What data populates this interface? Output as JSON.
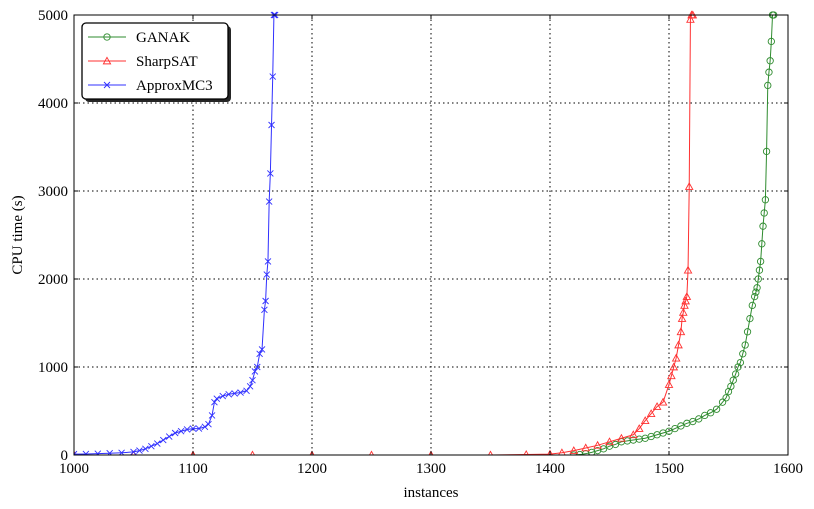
{
  "chart_data": {
    "type": "line",
    "title": "",
    "xlabel": "instances",
    "ylabel": "CPU time (s)",
    "xlim": [
      1000,
      1600
    ],
    "ylim": [
      0,
      5000
    ],
    "xticks": [
      1000,
      1100,
      1200,
      1300,
      1400,
      1500,
      1600
    ],
    "yticks": [
      0,
      1000,
      2000,
      3000,
      4000,
      5000
    ],
    "grid": true,
    "legend_position": "top-left",
    "series": [
      {
        "name": "GANAK",
        "color": "#2e8b2e",
        "marker": "circle",
        "x": [
          1420,
          1425,
          1430,
          1435,
          1440,
          1445,
          1450,
          1455,
          1460,
          1465,
          1470,
          1475,
          1480,
          1485,
          1490,
          1495,
          1500,
          1505,
          1510,
          1515,
          1520,
          1525,
          1530,
          1535,
          1540,
          1545,
          1548,
          1550,
          1552,
          1554,
          1556,
          1558,
          1560,
          1562,
          1564,
          1566,
          1568,
          1570,
          1572,
          1573,
          1574,
          1575,
          1576,
          1577,
          1578,
          1579,
          1580,
          1581,
          1582,
          1583,
          1584,
          1585,
          1586,
          1587,
          1588
        ],
        "y": [
          0,
          5,
          15,
          30,
          50,
          70,
          100,
          120,
          150,
          160,
          170,
          180,
          190,
          210,
          230,
          250,
          270,
          300,
          330,
          360,
          380,
          410,
          450,
          480,
          520,
          600,
          650,
          720,
          780,
          850,
          920,
          1000,
          1050,
          1150,
          1250,
          1400,
          1550,
          1700,
          1800,
          1850,
          1900,
          2000,
          2100,
          2200,
          2400,
          2600,
          2750,
          2900,
          3450,
          4200,
          4350,
          4480,
          4700,
          5000,
          5000
        ]
      },
      {
        "name": "SharpSAT",
        "color": "#ff3030",
        "marker": "triangle",
        "x": [
          1000,
          1050,
          1100,
          1150,
          1200,
          1250,
          1300,
          1350,
          1380,
          1400,
          1410,
          1420,
          1430,
          1440,
          1450,
          1460,
          1470,
          1475,
          1480,
          1485,
          1490,
          1495,
          1500,
          1502,
          1504,
          1506,
          1508,
          1510,
          1511,
          1512,
          1513,
          1514,
          1515,
          1516,
          1517,
          1518,
          1519,
          1520
        ],
        "y": [
          0,
          0,
          0,
          0,
          0,
          0,
          0,
          0,
          5,
          10,
          25,
          50,
          80,
          110,
          150,
          190,
          230,
          300,
          390,
          470,
          550,
          600,
          800,
          900,
          1000,
          1100,
          1250,
          1400,
          1550,
          1620,
          1700,
          1750,
          1800,
          2100,
          3050,
          4950,
          5000,
          5000
        ]
      },
      {
        "name": "ApproxMC3",
        "color": "#3030ff",
        "marker": "x",
        "x": [
          1000,
          1010,
          1020,
          1030,
          1040,
          1050,
          1055,
          1060,
          1065,
          1070,
          1075,
          1080,
          1085,
          1090,
          1095,
          1100,
          1105,
          1110,
          1113,
          1116,
          1118,
          1120,
          1125,
          1130,
          1135,
          1140,
          1145,
          1148,
          1150,
          1152,
          1154,
          1156,
          1158,
          1160,
          1161,
          1162,
          1163,
          1164,
          1165,
          1166,
          1167,
          1168,
          1169
        ],
        "y": [
          10,
          12,
          15,
          20,
          25,
          35,
          50,
          70,
          100,
          130,
          170,
          210,
          250,
          270,
          290,
          300,
          300,
          320,
          350,
          450,
          600,
          640,
          670,
          690,
          700,
          710,
          730,
          780,
          850,
          950,
          1000,
          1150,
          1200,
          1650,
          1750,
          2050,
          2200,
          2880,
          3200,
          3750,
          4300,
          5000,
          5000
        ]
      }
    ]
  }
}
